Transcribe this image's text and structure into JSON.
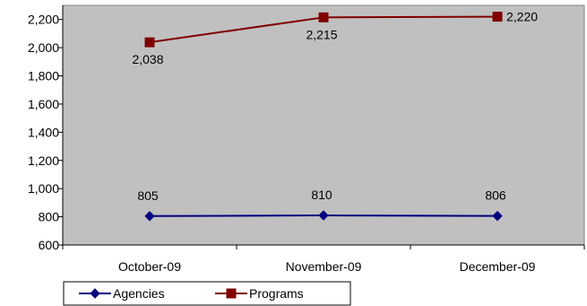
{
  "chart_data": {
    "type": "line",
    "title": "",
    "xlabel": "",
    "ylabel": "",
    "categories": [
      "October-09",
      "November-09",
      "December-09"
    ],
    "ylim": [
      600,
      2300
    ],
    "yticks": [
      600,
      800,
      1000,
      1200,
      1400,
      1600,
      1800,
      2000,
      2200
    ],
    "ytick_labels": [
      "600",
      "800",
      "1,000",
      "1,200",
      "1,400",
      "1,600",
      "1,800",
      "2,000",
      "2,200"
    ],
    "grid": false,
    "legend_position": "bottom-left",
    "plot_background": "#c0c0c0",
    "series": [
      {
        "name": "Agencies",
        "values": [
          805,
          810,
          806
        ],
        "labels": [
          "805",
          "810",
          "806"
        ],
        "color": "#000080",
        "marker": "diamond"
      },
      {
        "name": "Programs",
        "values": [
          2038,
          2215,
          2220
        ],
        "labels": [
          "2,038",
          "2,215",
          "2,220"
        ],
        "color": "#800000",
        "marker": "square"
      }
    ]
  }
}
